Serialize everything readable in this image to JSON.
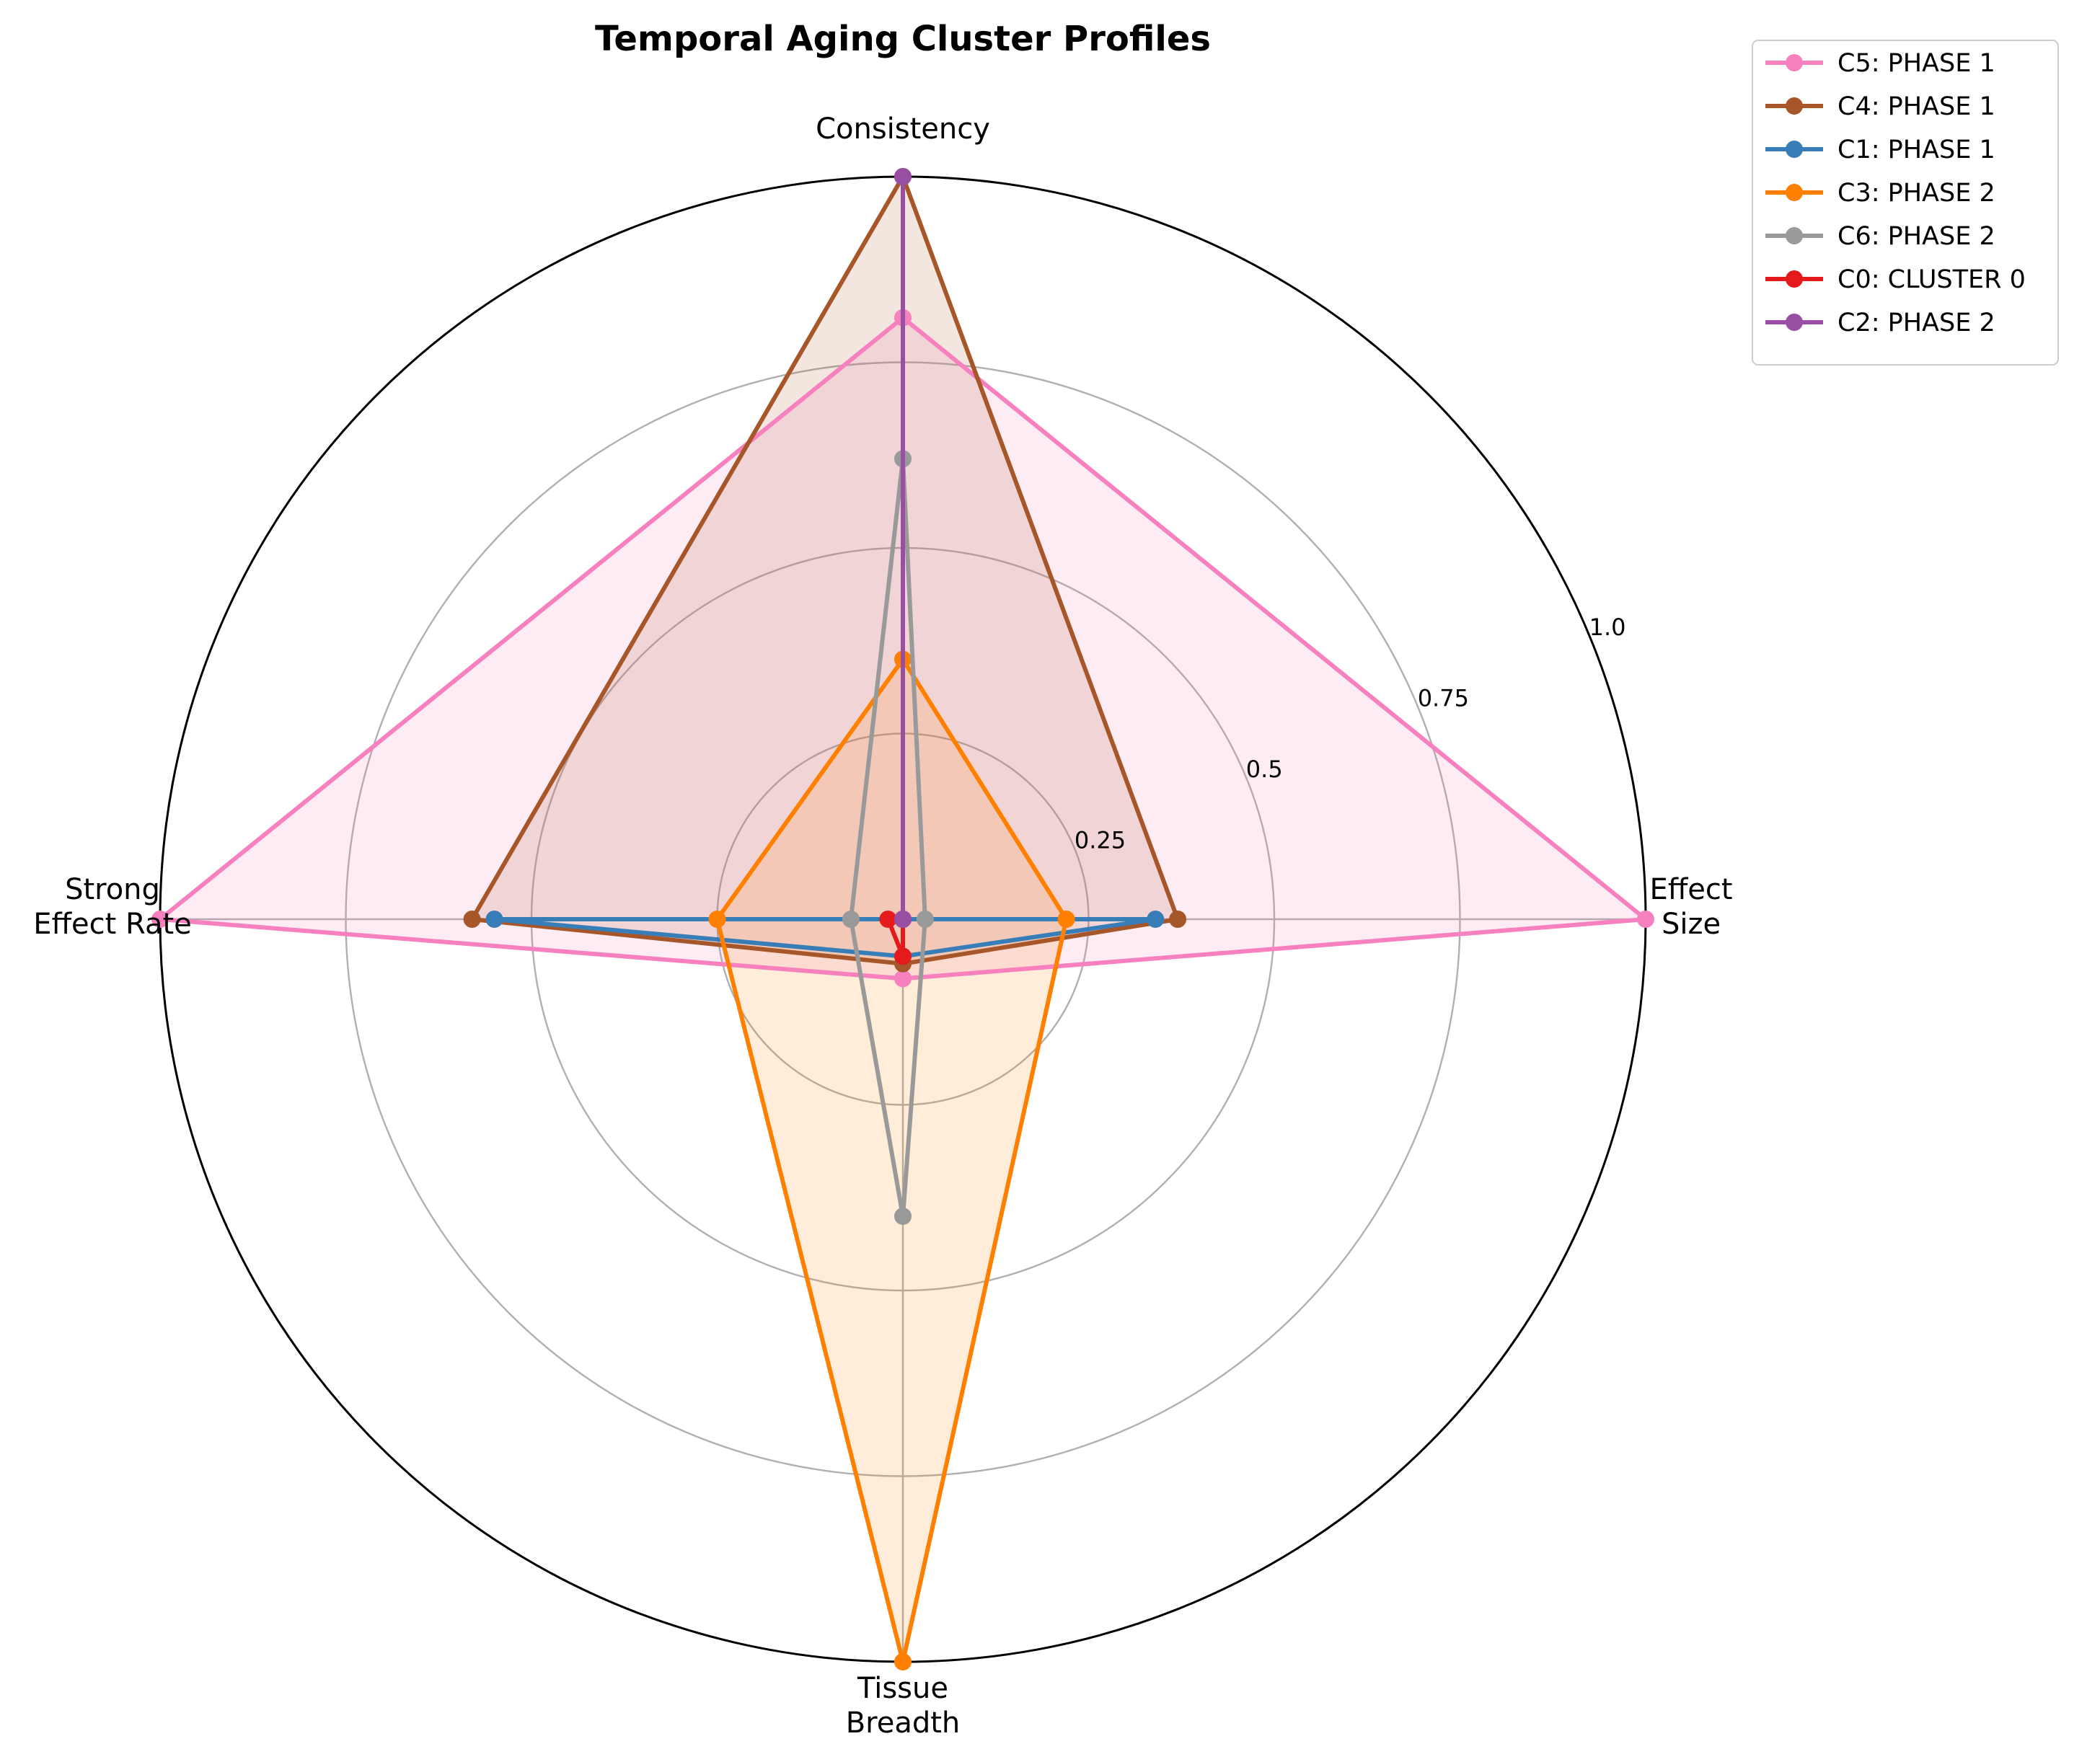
{
  "chart_data": {
    "type": "radar",
    "title": "Temporal Aging Cluster Profiles",
    "axes": [
      [
        "Effect",
        "Size"
      ],
      [
        "Consistency"
      ],
      [
        "Strong",
        "Effect Rate"
      ],
      [
        "Tissue",
        "Breadth"
      ]
    ],
    "rlim": [
      0,
      1.0
    ],
    "rticks": [
      0.25,
      0.5,
      0.75,
      1.0
    ],
    "rtick_labels": [
      "0.25",
      "0.5",
      "0.75",
      "1.0"
    ],
    "grid": true,
    "legend_position": "outside top-right",
    "series": [
      {
        "name": "C5: PHASE 1",
        "color": "#f781bf",
        "fill": true,
        "values": [
          1.0,
          0.81,
          1.0,
          0.08
        ]
      },
      {
        "name": "C4: PHASE 1",
        "color": "#a65628",
        "fill": true,
        "values": [
          0.37,
          1.0,
          0.58,
          0.06
        ]
      },
      {
        "name": "C1: PHASE 1",
        "color": "#377eb8",
        "fill": false,
        "values": [
          0.34,
          0.0,
          0.55,
          0.05
        ]
      },
      {
        "name": "C3: PHASE 2",
        "color": "#ff7f00",
        "fill": true,
        "values": [
          0.22,
          0.35,
          0.25,
          1.0
        ]
      },
      {
        "name": "C6: PHASE 2",
        "color": "#999999",
        "fill": false,
        "values": [
          0.03,
          0.62,
          0.07,
          0.4
        ]
      },
      {
        "name": "C0: CLUSTER 0",
        "color": "#e41a1c",
        "fill": false,
        "values": [
          0.0,
          0.0,
          0.02,
          0.05
        ]
      },
      {
        "name": "C2: PHASE 2",
        "color": "#984ea3",
        "fill": false,
        "values": [
          0.0,
          1.0,
          0.0,
          0.0
        ]
      }
    ]
  }
}
